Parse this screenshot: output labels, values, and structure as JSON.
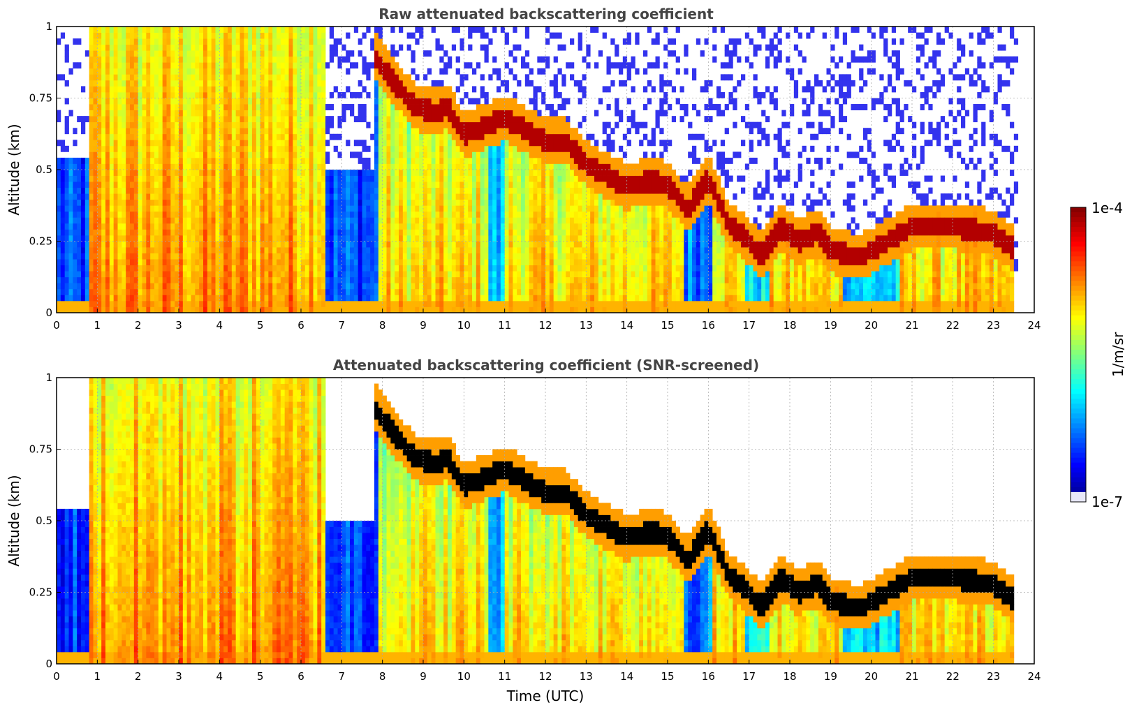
{
  "figure": {
    "colorbar": {
      "label": "1/m/sr",
      "max_label": "1e-4",
      "min_label": "1e-7",
      "min": 1e-07,
      "max": 0.0001,
      "scale": "log",
      "colormap": "jet",
      "low_color": "#e8e8f8"
    }
  },
  "chart_data": [
    {
      "type": "heatmap",
      "title": "Raw attenuated backscattering coefficient",
      "xlabel": "",
      "ylabel": "Altitude (km)",
      "xlim": [
        0,
        24
      ],
      "ylim": [
        0,
        1
      ],
      "x_ticks": [
        "0",
        "1",
        "2",
        "3",
        "4",
        "5",
        "6",
        "7",
        "8",
        "9",
        "10",
        "11",
        "12",
        "13",
        "14",
        "15",
        "16",
        "17",
        "18",
        "19",
        "20",
        "21",
        "22",
        "23",
        "24"
      ],
      "y_ticks": [
        "0",
        "0.25",
        "0.5",
        "0.75",
        "1"
      ],
      "grid": true,
      "cloud_base_km": [
        [
          7.8,
          0.9
        ],
        [
          8.2,
          0.82
        ],
        [
          8.8,
          0.72
        ],
        [
          9.3,
          0.7
        ],
        [
          9.6,
          0.72
        ],
        [
          10.0,
          0.62
        ],
        [
          10.5,
          0.65
        ],
        [
          11.0,
          0.68
        ],
        [
          11.5,
          0.64
        ],
        [
          12.0,
          0.6
        ],
        [
          12.5,
          0.6
        ],
        [
          13.0,
          0.52
        ],
        [
          13.5,
          0.48
        ],
        [
          14.0,
          0.44
        ],
        [
          14.5,
          0.46
        ],
        [
          15.0,
          0.45
        ],
        [
          15.5,
          0.36
        ],
        [
          16.0,
          0.47
        ],
        [
          16.5,
          0.31
        ],
        [
          17.0,
          0.25
        ],
        [
          17.3,
          0.2
        ],
        [
          17.8,
          0.3
        ],
        [
          18.2,
          0.25
        ],
        [
          18.7,
          0.28
        ],
        [
          19.0,
          0.22
        ],
        [
          19.5,
          0.2
        ],
        [
          19.8,
          0.2
        ],
        [
          21.0,
          0.3
        ],
        [
          22.0,
          0.3
        ],
        [
          23.0,
          0.28
        ],
        [
          23.5,
          0.22
        ]
      ]
    },
    {
      "type": "heatmap",
      "title": "Attenuated backscattering coefficient (SNR-screened)",
      "xlabel": "Time (UTC)",
      "ylabel": "Altitude (km)",
      "xlim": [
        0,
        24
      ],
      "ylim": [
        0,
        1
      ],
      "x_ticks": [
        "0",
        "1",
        "2",
        "3",
        "4",
        "5",
        "6",
        "7",
        "8",
        "9",
        "10",
        "11",
        "12",
        "13",
        "14",
        "15",
        "16",
        "17",
        "18",
        "19",
        "20",
        "21",
        "22",
        "23",
        "24"
      ],
      "y_ticks": [
        "0",
        "0.25",
        "0.5",
        "0.75",
        "1"
      ],
      "grid": true
    }
  ]
}
